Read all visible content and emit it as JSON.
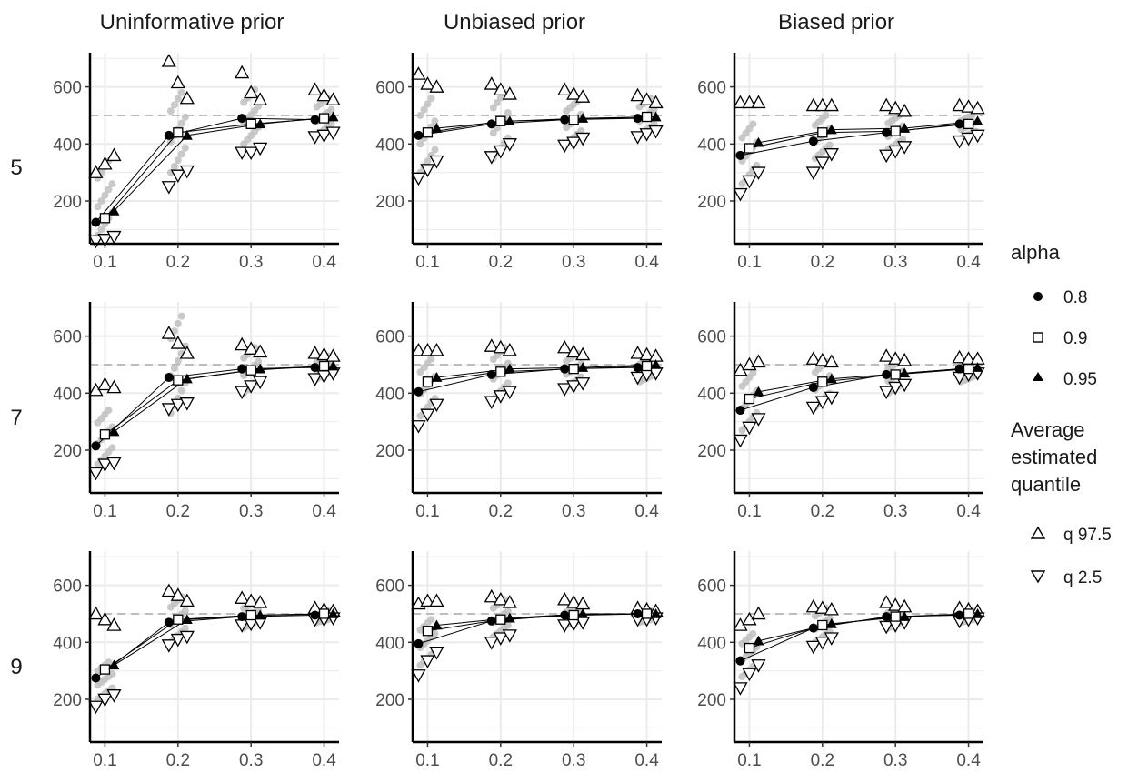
{
  "chart_data": {
    "type": "scatter",
    "layout": "faceted grid, 3 rows x 3 columns",
    "column_strips": [
      "Uninformative prior",
      "Unbiased prior",
      "Biased prior"
    ],
    "row_strips": [
      "5",
      "7",
      "9"
    ],
    "x_categories": [
      0.1,
      0.2,
      0.3,
      0.4
    ],
    "x_tick_labels": [
      "0.1",
      "0.2",
      "0.3",
      "0.4"
    ],
    "y_ticks": [
      200,
      400,
      600
    ],
    "y_tick_labels": [
      "200",
      "400",
      "600"
    ],
    "ylim": [
      50,
      720
    ],
    "reference_line": 500,
    "grid": true,
    "legend": {
      "position": "right",
      "alpha_title": "alpha",
      "alpha_levels": [
        {
          "label": "0.8",
          "shape": "filled-circle"
        },
        {
          "label": "0.9",
          "shape": "open-square"
        },
        {
          "label": "0.95",
          "shape": "filled-triangle"
        }
      ],
      "quantile_title_lines": [
        "Average",
        "estimated",
        "quantile"
      ],
      "quantile_levels": [
        {
          "label": "q 97.5",
          "shape": "open-triangle-up"
        },
        {
          "label": "q 2.5",
          "shape": "open-triangle-down"
        }
      ]
    },
    "colors": {
      "mean_marks": "#000000",
      "raw_points": "#bfbfbf",
      "grid": "#ebebeb",
      "reference": "#bdbdbd"
    },
    "panels": [
      {
        "row": 0,
        "col": 0,
        "mean": [
          [
            125,
            430,
            490,
            485
          ],
          [
            140,
            440,
            470,
            490
          ],
          [
            165,
            430,
            470,
            495
          ]
        ],
        "upper": [
          [
            300,
            690,
            650,
            590
          ],
          [
            330,
            615,
            580,
            570
          ],
          [
            360,
            560,
            555,
            555
          ]
        ],
        "lower": [
          [
            60,
            250,
            370,
            425
          ],
          [
            65,
            290,
            370,
            430
          ],
          [
            75,
            305,
            385,
            440
          ]
        ]
      },
      {
        "row": 0,
        "col": 1,
        "mean": [
          [
            430,
            470,
            485,
            490
          ],
          [
            440,
            480,
            485,
            495
          ],
          [
            455,
            480,
            490,
            495
          ]
        ],
        "upper": [
          [
            645,
            610,
            590,
            570
          ],
          [
            610,
            590,
            575,
            555
          ],
          [
            600,
            575,
            565,
            545
          ]
        ],
        "lower": [
          [
            280,
            355,
            395,
            425
          ],
          [
            310,
            375,
            405,
            435
          ],
          [
            340,
            400,
            420,
            445
          ]
        ]
      },
      {
        "row": 0,
        "col": 2,
        "mean": [
          [
            360,
            410,
            440,
            470
          ],
          [
            385,
            440,
            445,
            470
          ],
          [
            405,
            450,
            455,
            480
          ]
        ],
        "upper": [
          [
            545,
            535,
            535,
            535
          ],
          [
            545,
            535,
            525,
            530
          ],
          [
            545,
            535,
            515,
            525
          ]
        ],
        "lower": [
          [
            225,
            300,
            360,
            410
          ],
          [
            270,
            335,
            375,
            420
          ],
          [
            300,
            365,
            390,
            430
          ]
        ]
      },
      {
        "row": 1,
        "col": 0,
        "mean": [
          [
            215,
            455,
            485,
            490
          ],
          [
            255,
            445,
            480,
            495
          ],
          [
            265,
            450,
            485,
            495
          ]
        ],
        "upper": [
          [
            410,
            610,
            570,
            540
          ],
          [
            430,
            575,
            555,
            535
          ],
          [
            420,
            540,
            545,
            530
          ]
        ],
        "lower": [
          [
            120,
            345,
            405,
            450
          ],
          [
            150,
            360,
            425,
            460
          ],
          [
            155,
            365,
            440,
            470
          ]
        ]
      },
      {
        "row": 1,
        "col": 1,
        "mean": [
          [
            405,
            465,
            485,
            490
          ],
          [
            440,
            475,
            485,
            495
          ],
          [
            455,
            485,
            490,
            500
          ]
        ],
        "upper": [
          [
            550,
            565,
            560,
            540
          ],
          [
            550,
            560,
            545,
            535
          ],
          [
            550,
            550,
            535,
            530
          ]
        ],
        "lower": [
          [
            285,
            370,
            415,
            455
          ],
          [
            325,
            390,
            425,
            465
          ],
          [
            360,
            405,
            435,
            470
          ]
        ]
      },
      {
        "row": 1,
        "col": 2,
        "mean": [
          [
            340,
            420,
            465,
            485
          ],
          [
            380,
            440,
            465,
            485
          ],
          [
            405,
            450,
            470,
            490
          ]
        ],
        "upper": [
          [
            480,
            520,
            530,
            525
          ],
          [
            500,
            515,
            520,
            520
          ],
          [
            510,
            510,
            515,
            520
          ]
        ],
        "lower": [
          [
            235,
            350,
            405,
            455
          ],
          [
            280,
            370,
            420,
            465
          ],
          [
            310,
            385,
            430,
            470
          ]
        ]
      },
      {
        "row": 2,
        "col": 0,
        "mean": [
          [
            275,
            470,
            490,
            495
          ],
          [
            305,
            480,
            495,
            500
          ],
          [
            320,
            480,
            495,
            500
          ]
        ],
        "upper": [
          [
            500,
            580,
            555,
            520
          ],
          [
            480,
            565,
            545,
            515
          ],
          [
            460,
            545,
            540,
            510
          ]
        ],
        "lower": [
          [
            175,
            390,
            460,
            480
          ],
          [
            200,
            410,
            465,
            480
          ],
          [
            215,
            420,
            470,
            485
          ]
        ]
      },
      {
        "row": 2,
        "col": 1,
        "mean": [
          [
            395,
            475,
            495,
            500
          ],
          [
            440,
            480,
            495,
            500
          ],
          [
            460,
            485,
            500,
            500
          ]
        ],
        "upper": [
          [
            535,
            560,
            550,
            520
          ],
          [
            545,
            550,
            540,
            515
          ],
          [
            545,
            540,
            535,
            510
          ]
        ],
        "lower": [
          [
            285,
            400,
            460,
            480
          ],
          [
            335,
            415,
            465,
            480
          ],
          [
            365,
            425,
            470,
            485
          ]
        ]
      },
      {
        "row": 2,
        "col": 2,
        "mean": [
          [
            335,
            450,
            490,
            495
          ],
          [
            380,
            460,
            490,
            500
          ],
          [
            405,
            465,
            490,
            500
          ]
        ],
        "upper": [
          [
            460,
            525,
            540,
            520
          ],
          [
            480,
            520,
            530,
            515
          ],
          [
            500,
            515,
            525,
            510
          ]
        ],
        "lower": [
          [
            240,
            385,
            455,
            475
          ],
          [
            290,
            400,
            460,
            480
          ],
          [
            320,
            415,
            470,
            485
          ]
        ]
      }
    ],
    "raw_points": [
      {
        "row": 0,
        "col": 0,
        "ranges": [
          [
            80,
            340
          ],
          [
            300,
            580
          ],
          [
            400,
            590
          ],
          [
            430,
            560
          ]
        ]
      },
      {
        "row": 0,
        "col": 1,
        "ranges": [
          [
            300,
            560
          ],
          [
            350,
            580
          ],
          [
            400,
            550
          ],
          [
            430,
            560
          ]
        ]
      },
      {
        "row": 0,
        "col": 2,
        "ranges": [
          [
            260,
            470
          ],
          [
            350,
            500
          ],
          [
            380,
            500
          ],
          [
            420,
            500
          ]
        ]
      },
      {
        "row": 1,
        "col": 0,
        "ranges": [
          [
            150,
            340
          ],
          [
            330,
            670
          ],
          [
            400,
            560
          ],
          [
            450,
            530
          ]
        ]
      },
      {
        "row": 1,
        "col": 1,
        "ranges": [
          [
            320,
            520
          ],
          [
            380,
            560
          ],
          [
            420,
            540
          ],
          [
            440,
            520
          ]
        ]
      },
      {
        "row": 1,
        "col": 2,
        "ranges": [
          [
            270,
            470
          ],
          [
            350,
            510
          ],
          [
            400,
            510
          ],
          [
            440,
            510
          ]
        ]
      },
      {
        "row": 2,
        "col": 0,
        "ranges": [
          [
            200,
            330
          ],
          [
            400,
            560
          ],
          [
            450,
            540
          ],
          [
            470,
            510
          ]
        ]
      },
      {
        "row": 2,
        "col": 1,
        "ranges": [
          [
            320,
            480
          ],
          [
            420,
            550
          ],
          [
            460,
            520
          ],
          [
            470,
            510
          ]
        ]
      },
      {
        "row": 2,
        "col": 2,
        "ranges": [
          [
            280,
            430
          ],
          [
            400,
            520
          ],
          [
            450,
            520
          ],
          [
            470,
            510
          ]
        ]
      }
    ]
  }
}
